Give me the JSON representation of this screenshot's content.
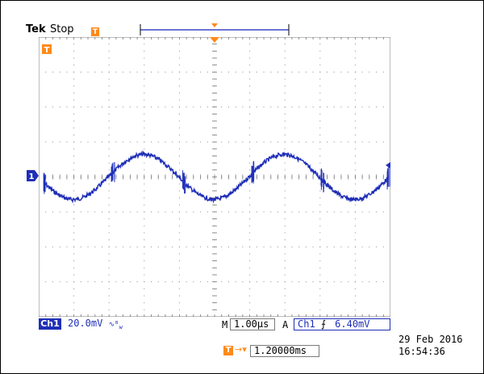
{
  "header": {
    "brand": "Tek",
    "acquisition_state": "Stop"
  },
  "channel": {
    "name": "Ch1",
    "marker": "1",
    "scale": "20.0mV",
    "bandwidth_icon": "bandwidth-limit-icon",
    "color": "#1f2fb8"
  },
  "timebase": {
    "mode": "M",
    "scale": "1.00µs"
  },
  "trigger": {
    "mode": "A",
    "source": "Ch1",
    "slope_icon": "rising-edge-icon",
    "level": "6.40mV",
    "marker": "T",
    "position": "1.20000ms",
    "color": "#ff8a1a"
  },
  "datetime": {
    "date": "29 Feb  2016",
    "time": "16:54:36"
  },
  "grid": {
    "divisions_x": 10,
    "divisions_y": 8
  }
}
